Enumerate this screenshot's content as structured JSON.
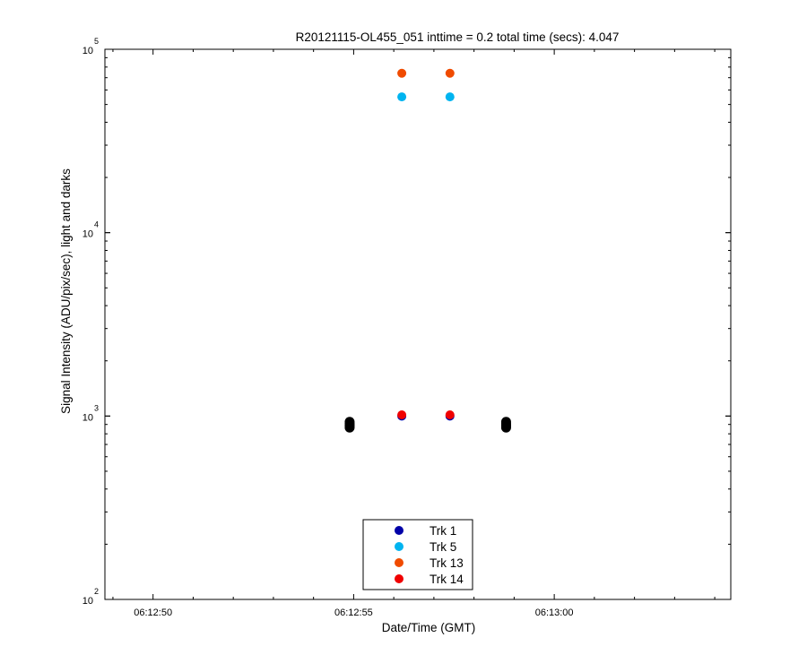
{
  "chart_data": {
    "type": "scatter",
    "title": "R20121115-OL455_051 inttime = 0.2 total time (secs): 4.047",
    "xlabel": "Date/Time (GMT)",
    "ylabel": "Signal Intensity (ADU/pix/sec), light and darks",
    "y_scale": "log",
    "ylim": [
      100,
      100000
    ],
    "xlim": [
      "06:12:48.8",
      "06:13:04.4"
    ],
    "x_ticks": [
      "06:12:50",
      "06:12:55",
      "06:13:00"
    ],
    "y_ticks": [
      {
        "base": "10",
        "exp": "2",
        "value": 100
      },
      {
        "base": "10",
        "exp": "3",
        "value": 1000
      },
      {
        "base": "10",
        "exp": "4",
        "value": 10000
      },
      {
        "base": "10",
        "exp": "5",
        "value": 100000
      }
    ],
    "grid": false,
    "legend_position": "bottom-center",
    "series": [
      {
        "name": "Trk 1",
        "color": "#0000a8",
        "points": [
          {
            "x": "06:12:56.2",
            "y": 1000
          },
          {
            "x": "06:12:57.4",
            "y": 1000
          }
        ]
      },
      {
        "name": "Trk 5",
        "color": "#00b4f0",
        "points": [
          {
            "x": "06:12:56.2",
            "y": 55000
          },
          {
            "x": "06:12:57.4",
            "y": 55000
          }
        ]
      },
      {
        "name": "Trk 13",
        "color": "#f04b00",
        "points": [
          {
            "x": "06:12:56.2",
            "y": 74000
          },
          {
            "x": "06:12:57.4",
            "y": 74000
          }
        ]
      },
      {
        "name": "Trk 14",
        "color": "#f00000",
        "points": [
          {
            "x": "06:12:56.2",
            "y": 1015
          },
          {
            "x": "06:12:57.4",
            "y": 1015
          }
        ]
      }
    ],
    "dark_points": {
      "color": "#000000",
      "points": [
        {
          "x": "06:12:54.9",
          "y": 930
        },
        {
          "x": "06:12:54.9",
          "y": 910
        },
        {
          "x": "06:12:54.9",
          "y": 895
        },
        {
          "x": "06:12:54.9",
          "y": 880
        },
        {
          "x": "06:12:54.9",
          "y": 865
        },
        {
          "x": "06:12:58.8",
          "y": 930
        },
        {
          "x": "06:12:58.8",
          "y": 910
        },
        {
          "x": "06:12:58.8",
          "y": 895
        },
        {
          "x": "06:12:58.8",
          "y": 880
        },
        {
          "x": "06:12:58.8",
          "y": 865
        }
      ]
    }
  }
}
